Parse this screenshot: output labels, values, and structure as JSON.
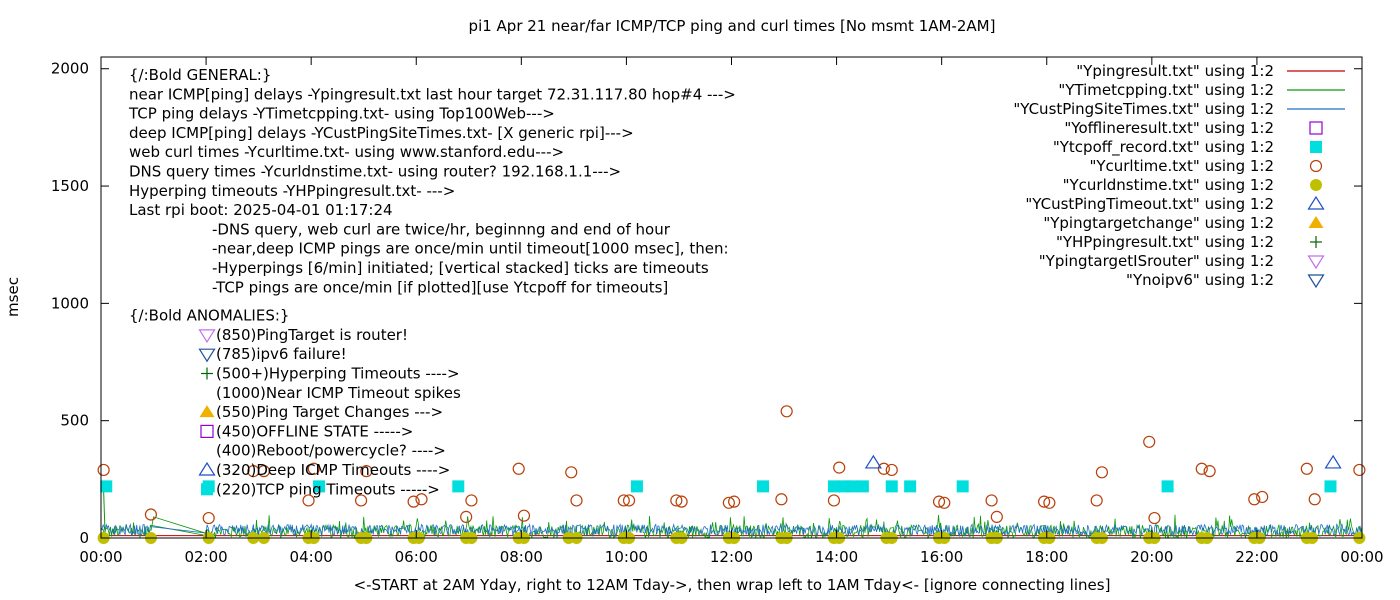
{
  "chart_data": {
    "type": "scatter",
    "title": "pi1 Apr 21  near/far ICMP/TCP ping and curl times [No msmt 1AM-2AM]",
    "xlabel": "<-START at 2AM Yday, right to 12AM Tday->, then wrap left to 1AM Tday<- [ignore connecting lines]",
    "ylabel": "msec",
    "xlim": [
      0,
      24
    ],
    "ylim": [
      0,
      2050
    ],
    "x_ticks": [
      "00:00",
      "02:00",
      "04:00",
      "06:00",
      "08:00",
      "10:00",
      "12:00",
      "14:00",
      "16:00",
      "18:00",
      "20:00",
      "22:00",
      "00:00"
    ],
    "y_ticks": [
      0,
      500,
      1000,
      1500,
      2000
    ],
    "grid": false,
    "legend_position": "top-right",
    "legend": [
      {
        "label": "\"Ypingresult.txt\" using 1:2",
        "style": "line",
        "color": "#c00000"
      },
      {
        "label": "\"YTimetcpping.txt\" using 1:2",
        "style": "line",
        "color": "#0a9a0a"
      },
      {
        "label": "\"YCustPingSiteTimes.txt\" using 1:2",
        "style": "line",
        "color": "#1f6fc8"
      },
      {
        "label": "\"Yofflineresult.txt\" using 1:2",
        "style": "open-square",
        "color": "#9400d3"
      },
      {
        "label": "\"Ytcpoff_record.txt\" using 1:2",
        "style": "filled-square",
        "color": "#00dede"
      },
      {
        "label": "\"Ycurltime.txt\" using 1:2",
        "style": "open-circle",
        "color": "#b8400a"
      },
      {
        "label": "\"Ycurldnstime.txt\" using 1:2",
        "style": "filled-circle",
        "color": "#c0c000"
      },
      {
        "label": "\"YCustPingTimeout.txt\" using 1:2",
        "style": "open-triangle-up",
        "color": "#1f4fc8"
      },
      {
        "label": "\"Ypingtargetchange\" using 1:2",
        "style": "filled-triangle-up",
        "color": "#f0b000"
      },
      {
        "label": "\"YHPpingresult.txt\" using 1:2",
        "style": "plus",
        "color": "#006400"
      },
      {
        "label": "\"YpingtargetISrouter\" using 1:2",
        "style": "open-triangle-down",
        "color": "#c070f0"
      },
      {
        "label": "\"Ynoipv6\" using 1:2",
        "style": "open-triangle-down",
        "color": "#1f4f9f"
      }
    ],
    "annotations": {
      "general": [
        "{/:Bold GENERAL:}",
        "near ICMP[ping] delays -Ypingresult.txt last hour target 72.31.117.80 hop#4 --->",
        "TCP ping delays -YTimetcpping.txt- using Top100Web--->",
        "deep ICMP[ping] delays -YCustPingSiteTimes.txt- [X generic rpi]--->",
        "web curl times -Ycurltime.txt- using www.stanford.edu--->",
        "DNS query times -Ycurldnstime.txt- using router? 192.168.1.1--->",
        "Hyperping timeouts -YHPpingresult.txt- --->",
        "Last rpi boot: 2025-04-01 01:17:24"
      ],
      "notes": [
        "-DNS query, web curl are twice/hr, beginnng and end of hour",
        "-near,deep ICMP pings are once/min until timeout[1000 msec], then:",
        "  -Hyperpings [6/min] initiated; [vertical stacked] ticks are timeouts",
        "-TCP pings are once/min [if plotted][use Ytcpoff for timeouts]"
      ],
      "anomalies_title": "{/:Bold ANOMALIES:}",
      "anomalies": [
        {
          "text": "(850)PingTarget is router!",
          "marker": "open-triangle-down",
          "color": "#c070f0"
        },
        {
          "text": "(785)ipv6 failure!",
          "marker": "open-triangle-down",
          "color": "#1f4f9f"
        },
        {
          "text": "(500+)Hyperping Timeouts ---->",
          "marker": "plus",
          "color": "#006400"
        },
        {
          "text": "(1000)Near ICMP Timeout spikes",
          "marker": "none",
          "color": ""
        },
        {
          "text": "(550)Ping Target Changes --->",
          "marker": "filled-triangle-up",
          "color": "#f0b000"
        },
        {
          "text": "(450)OFFLINE STATE ----->",
          "marker": "open-square",
          "color": "#9400d3"
        },
        {
          "text": "(400)Reboot/powercycle? ---->",
          "marker": "none",
          "color": ""
        },
        {
          "text": "(320)Deep ICMP Timeouts ---->",
          "marker": "open-triangle-up",
          "color": "#1f4fc8"
        },
        {
          "text": "(220)TCP ping Timeouts ----->",
          "marker": "filled-square",
          "color": "#00dede"
        }
      ]
    },
    "series": [
      {
        "name": "\"Ycurltime.txt\" using 1:2",
        "marker": "open-circle",
        "points": [
          [
            0.05,
            290
          ],
          [
            0.95,
            100
          ],
          [
            2.05,
            85
          ],
          [
            2.9,
            285
          ],
          [
            3.1,
            285
          ],
          [
            3.95,
            160
          ],
          [
            4.05,
            295
          ],
          [
            4.95,
            160
          ],
          [
            5.05,
            285
          ],
          [
            5.95,
            155
          ],
          [
            6.1,
            165
          ],
          [
            6.95,
            90
          ],
          [
            7.05,
            160
          ],
          [
            7.95,
            295
          ],
          [
            8.05,
            95
          ],
          [
            8.95,
            280
          ],
          [
            9.05,
            160
          ],
          [
            9.95,
            160
          ],
          [
            10.05,
            160
          ],
          [
            10.95,
            160
          ],
          [
            11.05,
            155
          ],
          [
            11.95,
            150
          ],
          [
            12.05,
            155
          ],
          [
            12.95,
            165
          ],
          [
            13.05,
            540
          ],
          [
            13.95,
            160
          ],
          [
            14.05,
            300
          ],
          [
            14.9,
            295
          ],
          [
            15.05,
            290
          ],
          [
            15.95,
            155
          ],
          [
            16.05,
            150
          ],
          [
            16.95,
            160
          ],
          [
            17.05,
            90
          ],
          [
            17.95,
            155
          ],
          [
            18.05,
            150
          ],
          [
            18.95,
            160
          ],
          [
            19.05,
            280
          ],
          [
            19.95,
            410
          ],
          [
            20.05,
            85
          ],
          [
            20.95,
            295
          ],
          [
            21.1,
            285
          ],
          [
            21.95,
            165
          ],
          [
            22.1,
            175
          ],
          [
            22.95,
            295
          ],
          [
            23.1,
            165
          ],
          [
            23.95,
            290
          ]
        ]
      },
      {
        "name": "\"Ycurldnstime.txt\" using 1:2",
        "marker": "filled-circle",
        "points": [
          [
            0.05,
            0
          ],
          [
            0.95,
            0
          ],
          [
            2.05,
            0
          ],
          [
            2.9,
            0
          ],
          [
            3.1,
            0
          ],
          [
            3.95,
            0
          ],
          [
            4.05,
            0
          ],
          [
            4.95,
            0
          ],
          [
            5.05,
            0
          ],
          [
            5.95,
            0
          ],
          [
            6.05,
            0
          ],
          [
            6.95,
            0
          ],
          [
            7.05,
            0
          ],
          [
            7.95,
            0
          ],
          [
            8.05,
            0
          ],
          [
            8.9,
            0
          ],
          [
            9.05,
            0
          ],
          [
            9.95,
            0
          ],
          [
            10.05,
            0
          ],
          [
            10.95,
            0
          ],
          [
            11.05,
            0
          ],
          [
            11.95,
            0
          ],
          [
            12.05,
            0
          ],
          [
            12.95,
            0
          ],
          [
            13.05,
            0
          ],
          [
            13.95,
            0
          ],
          [
            14.05,
            0
          ],
          [
            14.95,
            0
          ],
          [
            15.05,
            0
          ],
          [
            15.95,
            0
          ],
          [
            16.05,
            0
          ],
          [
            16.95,
            0
          ],
          [
            17.05,
            0
          ],
          [
            17.95,
            0
          ],
          [
            18.05,
            0
          ],
          [
            18.95,
            0
          ],
          [
            19.05,
            0
          ],
          [
            19.95,
            0
          ],
          [
            20.05,
            0
          ],
          [
            20.95,
            0
          ],
          [
            21.05,
            0
          ],
          [
            21.95,
            0
          ],
          [
            22.05,
            0
          ],
          [
            22.95,
            0
          ],
          [
            23.05,
            0
          ],
          [
            23.95,
            0
          ]
        ]
      },
      {
        "name": "\"Ytcpoff_record.txt\" using 1:2",
        "marker": "filled-square",
        "points": [
          [
            0.1,
            220
          ],
          [
            2.05,
            220
          ],
          [
            4.15,
            220
          ],
          [
            6.8,
            220
          ],
          [
            10.2,
            220
          ],
          [
            12.6,
            220
          ],
          [
            13.95,
            220
          ],
          [
            14.15,
            220
          ],
          [
            14.3,
            220
          ],
          [
            14.5,
            220
          ],
          [
            15.05,
            220
          ],
          [
            15.4,
            220
          ],
          [
            16.4,
            220
          ],
          [
            20.3,
            220
          ],
          [
            23.4,
            220
          ]
        ]
      },
      {
        "name": "\"YCustPingTimeout.txt\" using 1:2",
        "marker": "open-triangle-up",
        "points": [
          [
            14.7,
            320
          ],
          [
            23.45,
            320
          ]
        ]
      },
      {
        "name": "\"Ypingresult.txt\" using 1:2",
        "style": "line",
        "description_points": [
          [
            0,
            10
          ],
          [
            24,
            10
          ]
        ]
      },
      {
        "name": "\"YTimetcpping.txt\" using 1:2",
        "style": "line",
        "approx_range": [
          0,
          100
        ]
      },
      {
        "name": "\"YCustPingSiteTimes.txt\" using 1:2",
        "style": "line",
        "approx_range": [
          10,
          70
        ]
      }
    ]
  }
}
